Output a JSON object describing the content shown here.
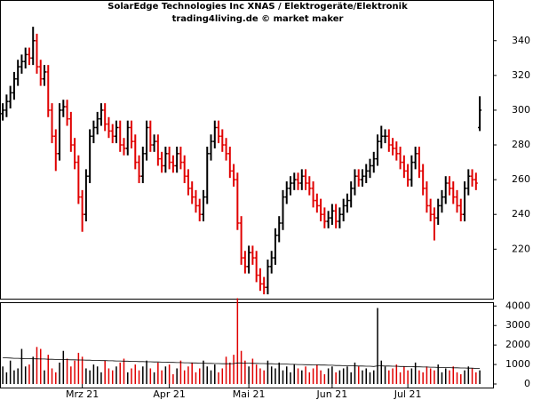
{
  "chart_data": {
    "type": "ohlc",
    "title": "SolarEdge Technologies Inc XNAS / Elektrogeräte/Elektronik",
    "subtitle": "trading4living.de © market maker",
    "up_color": "#000000",
    "down_color": "#e00000",
    "avg_color": "#000000",
    "xlim": [
      -0.5,
      129.5
    ],
    "xticks": [
      {
        "value": 21,
        "label": "Mrz 21"
      },
      {
        "value": 44,
        "label": "Apr 21"
      },
      {
        "value": 65,
        "label": "Mai 21"
      },
      {
        "value": 87,
        "label": "Jun 21"
      },
      {
        "value": 107,
        "label": "Jul 21"
      }
    ],
    "ylim": [
      191.5,
      362.9
    ],
    "yticks": [
      220,
      240,
      260,
      280,
      300,
      320,
      340
    ],
    "y2lim": [
      0,
      4150
    ],
    "y2ticks": [
      0,
      1000,
      2000,
      3000,
      4000
    ],
    "ohlc": [
      [
        298,
        304,
        294,
        300
      ],
      [
        300,
        309,
        296,
        305
      ],
      [
        305,
        314,
        301,
        310
      ],
      [
        310,
        322,
        306,
        318
      ],
      [
        318,
        329,
        314,
        325
      ],
      [
        325,
        332,
        321,
        328
      ],
      [
        328,
        336,
        324,
        332
      ],
      [
        332,
        336,
        326,
        330
      ],
      [
        330,
        348,
        326,
        340
      ],
      [
        340,
        344,
        321,
        325
      ],
      [
        325,
        329,
        314,
        318
      ],
      [
        318,
        326,
        314,
        322
      ],
      [
        322,
        326,
        296,
        300
      ],
      [
        300,
        304,
        281,
        285
      ],
      [
        285,
        289,
        265,
        275
      ],
      [
        275,
        304,
        271,
        300
      ],
      [
        300,
        306,
        296,
        302
      ],
      [
        302,
        306,
        291,
        295
      ],
      [
        295,
        299,
        276,
        280
      ],
      [
        280,
        284,
        266,
        270
      ],
      [
        270,
        274,
        246,
        250
      ],
      [
        250,
        254,
        230,
        240
      ],
      [
        240,
        266,
        236,
        262
      ],
      [
        262,
        289,
        258,
        285
      ],
      [
        285,
        294,
        281,
        290
      ],
      [
        290,
        299,
        286,
        295
      ],
      [
        295,
        304,
        291,
        300
      ],
      [
        300,
        304,
        288,
        292
      ],
      [
        292,
        296,
        284,
        288
      ],
      [
        288,
        292,
        281,
        285
      ],
      [
        285,
        294,
        281,
        290
      ],
      [
        290,
        294,
        276,
        280
      ],
      [
        280,
        284,
        274,
        278
      ],
      [
        278,
        294,
        274,
        290
      ],
      [
        290,
        294,
        278,
        282
      ],
      [
        282,
        286,
        266,
        270
      ],
      [
        270,
        274,
        258,
        262
      ],
      [
        262,
        279,
        258,
        275
      ],
      [
        275,
        294,
        271,
        290
      ],
      [
        290,
        294,
        276,
        280
      ],
      [
        280,
        286,
        276,
        282
      ],
      [
        282,
        286,
        268,
        272
      ],
      [
        272,
        276,
        264,
        268
      ],
      [
        268,
        279,
        264,
        275
      ],
      [
        275,
        279,
        266,
        270
      ],
      [
        270,
        274,
        264,
        268
      ],
      [
        268,
        279,
        264,
        275
      ],
      [
        275,
        279,
        266,
        270
      ],
      [
        270,
        274,
        258,
        262
      ],
      [
        262,
        266,
        251,
        255
      ],
      [
        255,
        259,
        246,
        250
      ],
      [
        250,
        254,
        241,
        245
      ],
      [
        245,
        249,
        236,
        240
      ],
      [
        240,
        254,
        236,
        250
      ],
      [
        250,
        279,
        246,
        275
      ],
      [
        275,
        286,
        271,
        282
      ],
      [
        282,
        294,
        278,
        290
      ],
      [
        290,
        294,
        281,
        285
      ],
      [
        285,
        289,
        276,
        280
      ],
      [
        280,
        284,
        271,
        275
      ],
      [
        275,
        279,
        261,
        265
      ],
      [
        265,
        269,
        256,
        260
      ],
      [
        260,
        264,
        231,
        235
      ],
      [
        235,
        239,
        211,
        215
      ],
      [
        215,
        219,
        206,
        210
      ],
      [
        210,
        222,
        206,
        218
      ],
      [
        218,
        222,
        211,
        215
      ],
      [
        215,
        219,
        201,
        205
      ],
      [
        205,
        209,
        196,
        200
      ],
      [
        200,
        204,
        194,
        198
      ],
      [
        198,
        214,
        194,
        210
      ],
      [
        210,
        219,
        206,
        215
      ],
      [
        215,
        232,
        211,
        228
      ],
      [
        228,
        239,
        224,
        235
      ],
      [
        235,
        254,
        231,
        250
      ],
      [
        250,
        259,
        246,
        255
      ],
      [
        255,
        262,
        251,
        258
      ],
      [
        258,
        264,
        254,
        260
      ],
      [
        260,
        264,
        254,
        258
      ],
      [
        258,
        266,
        254,
        262
      ],
      [
        262,
        266,
        254,
        258
      ],
      [
        258,
        262,
        251,
        255
      ],
      [
        255,
        259,
        244,
        248
      ],
      [
        248,
        252,
        241,
        245
      ],
      [
        245,
        249,
        236,
        240
      ],
      [
        240,
        244,
        232,
        236
      ],
      [
        236,
        242,
        232,
        238
      ],
      [
        238,
        246,
        234,
        242
      ],
      [
        242,
        246,
        232,
        236
      ],
      [
        236,
        244,
        232,
        240
      ],
      [
        240,
        249,
        236,
        245
      ],
      [
        245,
        252,
        241,
        248
      ],
      [
        248,
        259,
        244,
        255
      ],
      [
        255,
        266,
        251,
        262
      ],
      [
        262,
        266,
        256,
        260
      ],
      [
        260,
        266,
        256,
        262
      ],
      [
        262,
        269,
        258,
        265
      ],
      [
        265,
        272,
        261,
        268
      ],
      [
        268,
        276,
        264,
        272
      ],
      [
        272,
        286,
        268,
        282
      ],
      [
        282,
        291,
        278,
        285
      ],
      [
        285,
        289,
        281,
        285
      ],
      [
        285,
        289,
        276,
        280
      ],
      [
        280,
        284,
        274,
        278
      ],
      [
        278,
        282,
        271,
        275
      ],
      [
        275,
        279,
        266,
        270
      ],
      [
        270,
        274,
        261,
        265
      ],
      [
        265,
        269,
        256,
        260
      ],
      [
        260,
        274,
        256,
        270
      ],
      [
        270,
        279,
        266,
        275
      ],
      [
        275,
        279,
        261,
        265
      ],
      [
        265,
        269,
        251,
        255
      ],
      [
        255,
        259,
        241,
        245
      ],
      [
        245,
        249,
        236,
        240
      ],
      [
        240,
        244,
        225,
        238
      ],
      [
        238,
        249,
        234,
        245
      ],
      [
        245,
        254,
        241,
        250
      ],
      [
        250,
        262,
        246,
        258
      ],
      [
        258,
        262,
        251,
        255
      ],
      [
        255,
        259,
        246,
        250
      ],
      [
        250,
        254,
        241,
        245
      ],
      [
        245,
        249,
        236,
        240
      ],
      [
        240,
        259,
        236,
        255
      ],
      [
        255,
        266,
        251,
        262
      ],
      [
        262,
        266,
        256,
        260
      ],
      [
        260,
        264,
        254,
        258
      ],
      [
        290,
        308,
        288,
        300
      ]
    ],
    "volume": [
      900,
      600,
      1200,
      700,
      800,
      1800,
      900,
      1000,
      1400,
      1900,
      1800,
      700,
      1500,
      800,
      600,
      1100,
      1700,
      1300,
      900,
      1200,
      1600,
      1400,
      800,
      700,
      1000,
      900,
      600,
      1200,
      800,
      700,
      900,
      1100,
      1300,
      600,
      800,
      1000,
      700,
      900,
      1200,
      800,
      600,
      1100,
      700,
      900,
      1000,
      500,
      800,
      1200,
      700,
      900,
      1100,
      600,
      800,
      1200,
      900,
      700,
      1000,
      600,
      800,
      1400,
      1100,
      1500,
      4400,
      1700,
      1200,
      900,
      1300,
      1000,
      800,
      700,
      1200,
      900,
      800,
      1100,
      700,
      900,
      600,
      1000,
      800,
      700,
      900,
      600,
      800,
      1000,
      700,
      500,
      800,
      900,
      600,
      700,
      800,
      900,
      600,
      1100,
      900,
      700,
      800,
      600,
      700,
      3900,
      1200,
      900,
      700,
      800,
      1000,
      600,
      900,
      700,
      800,
      1100,
      700,
      600,
      900,
      800,
      700,
      1000,
      600,
      800,
      700,
      900,
      600,
      500,
      700,
      900,
      800,
      600,
      700
    ],
    "volume_avg": [
      1350,
      1340,
      1330,
      1320,
      1320,
      1310,
      1300,
      1300,
      1290,
      1290,
      1280,
      1280,
      1270,
      1270,
      1260,
      1260,
      1250,
      1250,
      1240,
      1240,
      1230,
      1230,
      1220,
      1220,
      1210,
      1210,
      1200,
      1200,
      1190,
      1190,
      1180,
      1180,
      1170,
      1170,
      1160,
      1160,
      1150,
      1150,
      1140,
      1140,
      1130,
      1130,
      1120,
      1120,
      1110,
      1110,
      1100,
      1100,
      1090,
      1090,
      1080,
      1080,
      1070,
      1070,
      1060,
      1060,
      1050,
      1050,
      1040,
      1040,
      1040,
      1050,
      1080,
      1080,
      1070,
      1070,
      1060,
      1060,
      1050,
      1050,
      1040,
      1040,
      1030,
      1030,
      1020,
      1020,
      1010,
      1010,
      1000,
      1000,
      990,
      990,
      980,
      980,
      970,
      970,
      960,
      960,
      950,
      950,
      940,
      940,
      930,
      930,
      920,
      920,
      910,
      910,
      900,
      930,
      930,
      920,
      920,
      910,
      910,
      900,
      900,
      890,
      890,
      880,
      880,
      870,
      870,
      860,
      860,
      850,
      850,
      840,
      840,
      830,
      830,
      820,
      820,
      810,
      810,
      800,
      800
    ]
  }
}
